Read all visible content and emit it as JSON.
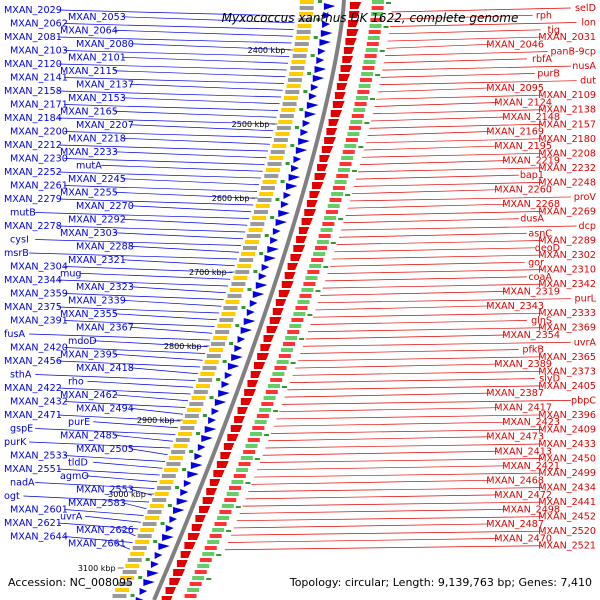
{
  "title": "Myxococcus xanthus DK 1622, complete genome",
  "accession": "Accession: NC_008095",
  "summary": "Topology: circular; Length: 9,139,763 bp; Genes: 7,410",
  "colors": {
    "reverse": "#0000e0",
    "forward": "#e00000",
    "backbone": "#808080"
  },
  "scale_labels": [
    "2400 kbp",
    "2500 kbp",
    "2600 kbp",
    "2700 kbp",
    "2800 kbp",
    "2900 kbp",
    "3000 kbp",
    "3100 kbp"
  ],
  "left_labels": [
    "MXAN_2029",
    "MXAN_2053",
    "MXAN_2062",
    "MXAN_2064",
    "MXAN_2081",
    "MXAN_2080",
    "MXAN_2103",
    "MXAN_2101",
    "MXAN_2120",
    "MXAN_2115",
    "MXAN_2141",
    "MXAN_2137",
    "MXAN_2158",
    "MXAN_2153",
    "MXAN_2171",
    "MXAN_2165",
    "MXAN_2184",
    "MXAN_2207",
    "MXAN_2200",
    "MXAN_2218",
    "MXAN_2212",
    "MXAN_2233",
    "MXAN_2230",
    "mutA",
    "MXAN_2252",
    "MXAN_2245",
    "MXAN_2261",
    "MXAN_2255",
    "MXAN_2279",
    "MXAN_2270",
    "mutB",
    "MXAN_2292",
    "MXAN_2278",
    "MXAN_2303",
    "cysI",
    "MXAN_2288",
    "msrB",
    "MXAN_2321",
    "MXAN_2304",
    "mug",
    "MXAN_2344",
    "MXAN_2323",
    "MXAN_2359",
    "MXAN_2339",
    "MXAN_2375",
    "MXAN_2355",
    "MXAN_2391",
    "MXAN_2367",
    "fusA",
    "mdoD",
    "MXAN_2420",
    "MXAN_2395",
    "MXAN_2456",
    "MXAN_2418",
    "sthA",
    "rho",
    "MXAN_2422",
    "MXAN_2462",
    "MXAN_2432",
    "MXAN_2494",
    "MXAN_2471",
    "purE",
    "gspE",
    "MXAN_2485",
    "purK",
    "MXAN_2505",
    "MXAN_2533",
    "tldD",
    "MXAN_2551",
    "agmO",
    "nadA",
    "MXAN_2553",
    "ogt",
    "MXAN_2583",
    "MXAN_2601",
    "uvrA",
    "MXAN_2621",
    "MXAN_2626",
    "MXAN_2644",
    "MXAN_2661"
  ],
  "right_labels": [
    "selD",
    "rph",
    "lon",
    "tig",
    "MXAN_2031",
    "MXAN_2046",
    "panB-9cp",
    "rbfA",
    "nusA",
    "purB",
    "dut",
    "MXAN_2095",
    "MXAN_2109",
    "MXAN_2124",
    "MXAN_2138",
    "MXAN_2148",
    "MXAN_2157",
    "MXAN_2169",
    "MXAN_2180",
    "MXAN_2195",
    "MXAN_2208",
    "MXAN_2219",
    "MXAN_2232",
    "bap1",
    "MXAN_2248",
    "MXAN_2260",
    "proV",
    "MXAN_2268",
    "MXAN_2269",
    "dusA",
    "dcp",
    "asnC",
    "MXAN_2289",
    "deoD",
    "MXAN_2302",
    "gor",
    "MXAN_2310",
    "coaA",
    "MXAN_2342",
    "MXAN_2319",
    "purL",
    "MXAN_2343",
    "MXAN_2333",
    "glnS",
    "MXAN_2369",
    "MXAN_2354",
    "uvrA",
    "pfkB",
    "MXAN_2365",
    "MXAN_2389",
    "MXAN_2373",
    "slyD",
    "MXAN_2405",
    "MXAN_2387",
    "pbpC",
    "MXAN_2417",
    "MXAN_2396",
    "MXAN_2423",
    "MXAN_2409",
    "MXAN_2473",
    "MXAN_2433",
    "MXAN_2413",
    "MXAN_2450",
    "MXAN_2421",
    "MXAN_2499",
    "MXAN_2468",
    "MXAN_2434",
    "MXAN_2472",
    "MXAN_2441",
    "MXAN_2498",
    "MXAN_2452",
    "MXAN_2487",
    "MXAN_2520",
    "MXAN_2470",
    "MXAN_2521"
  ]
}
